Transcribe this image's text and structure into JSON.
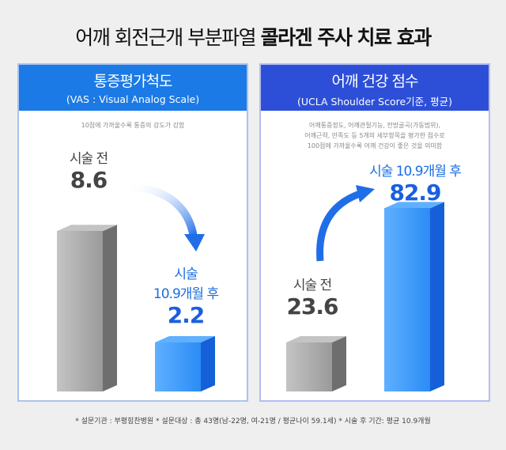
{
  "title": {
    "normal": "어깨 회전근개 부분파열 ",
    "bold": "콜라겐 주사 치료 효과"
  },
  "chart_data": [
    {
      "type": "bar",
      "title": "통증평가척도",
      "subtitle": "(VAS : Visual Analog Scale)",
      "note": "10점에 가까울수록 통증의 강도가 강함",
      "categories": [
        "시술 전",
        "시술 10.9개월 후"
      ],
      "values": [
        8.6,
        2.2
      ],
      "ylim": [
        0,
        10
      ]
    },
    {
      "type": "bar",
      "title": "어깨 건강 점수",
      "subtitle": "(UCLA Shoulder Score기준, 평균)",
      "note": [
        "어깨통증정도, 어깨관절기능, 전방굴곡(가동범위),",
        "어깨근력, 만족도 등 5개의 세부항목을 평가한 점수로",
        "100점에 가까울수록 어깨 건강이 좋은 것을 의미함"
      ],
      "categories": [
        "시술 전",
        "시술 10.9개월 후"
      ],
      "values": [
        23.6,
        82.9
      ],
      "ylim": [
        0,
        100
      ]
    }
  ],
  "labels": {
    "before": "시술 전",
    "after_l1": "시술",
    "after_l2": "10.9개월 후",
    "after_full": "시술 10.9개월 후",
    "v_l0": "8.6",
    "v_l1": "2.2",
    "v_r0": "23.6",
    "v_r1": "82.9"
  },
  "footer": "* 설문기관 : 부평힘찬병원   * 설문대상 : 총 43명(남-22명, 여-21명 / 평균나이 59.1세)   * 시술 후 기간: 평균 10.9개월",
  "colors": {
    "gray": "#8a8a8a",
    "blue": "#1e7cf0",
    "header_left": "#1b7ae6",
    "header_right": "#2d4fd8"
  }
}
